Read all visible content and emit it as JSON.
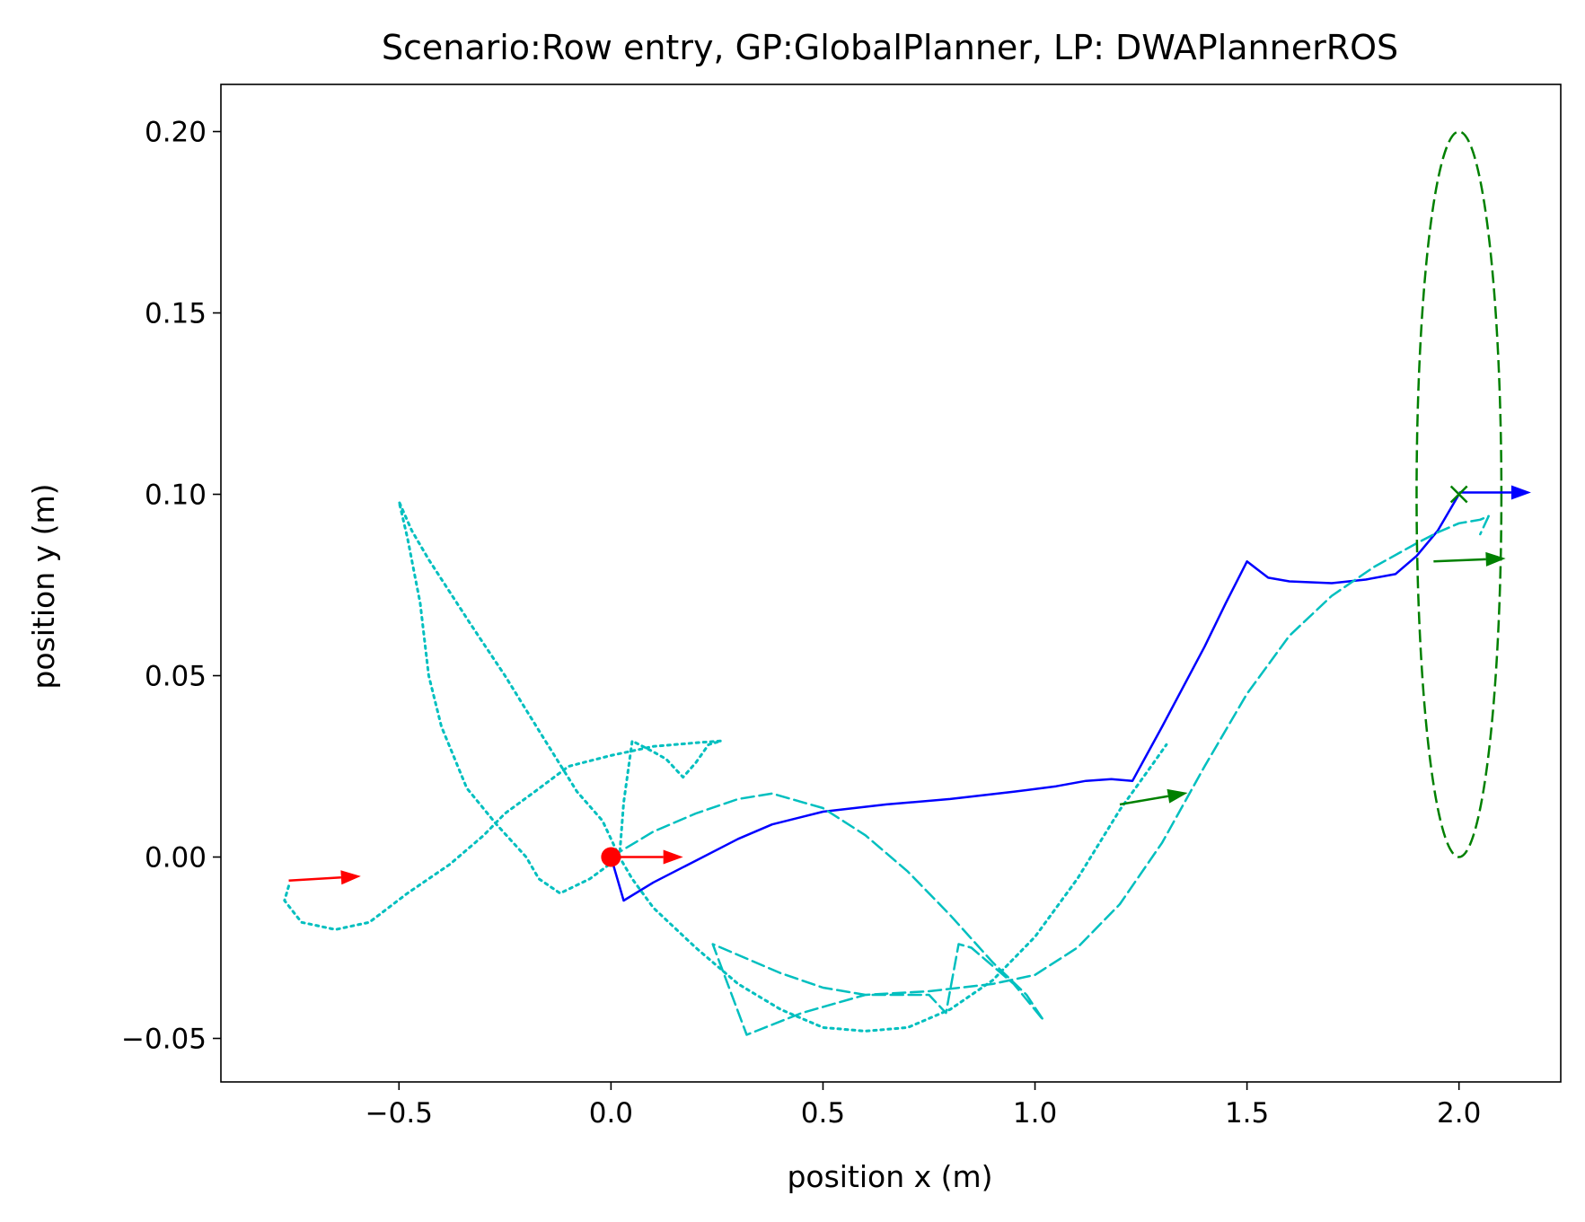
{
  "chart_data": {
    "type": "line",
    "title": "Scenario:Row entry, GP:GlobalPlanner, LP: DWAPlannerROS",
    "xlabel": "position x (m)",
    "ylabel": "position y (m)",
    "xlim": [
      -0.92,
      2.24
    ],
    "ylim": [
      -0.062,
      0.213
    ],
    "xticks": [
      -0.5,
      0.0,
      0.5,
      1.0,
      1.5,
      2.0
    ],
    "xtick_labels": [
      "−0.5",
      "0.0",
      "0.5",
      "1.0",
      "1.5",
      "2.0"
    ],
    "yticks": [
      -0.05,
      0.0,
      0.05,
      0.1,
      0.15,
      0.2
    ],
    "ytick_labels": [
      "−0.05",
      "0.00",
      "0.05",
      "0.10",
      "0.15",
      "0.20"
    ],
    "grid": false,
    "legend": "none",
    "series": [
      {
        "style": "solid",
        "color": "#0000ff",
        "points": [
          [
            0.0,
            0.0
          ],
          [
            0.03,
            -0.012
          ],
          [
            0.1,
            -0.007
          ],
          [
            0.2,
            -0.001
          ],
          [
            0.3,
            0.005
          ],
          [
            0.38,
            0.009
          ],
          [
            0.5,
            0.0125
          ],
          [
            0.65,
            0.0145
          ],
          [
            0.8,
            0.016
          ],
          [
            0.95,
            0.018
          ],
          [
            1.05,
            0.0195
          ],
          [
            1.12,
            0.021
          ],
          [
            1.18,
            0.0215
          ],
          [
            1.23,
            0.021
          ],
          [
            1.3,
            0.036
          ],
          [
            1.4,
            0.058
          ],
          [
            1.45,
            0.07
          ],
          [
            1.5,
            0.0815
          ],
          [
            1.55,
            0.077
          ],
          [
            1.6,
            0.076
          ],
          [
            1.7,
            0.0755
          ],
          [
            1.78,
            0.0765
          ],
          [
            1.85,
            0.078
          ],
          [
            1.9,
            0.083
          ],
          [
            1.95,
            0.09
          ],
          [
            1.98,
            0.096
          ],
          [
            2.0,
            0.1
          ]
        ]
      },
      {
        "style": "dashed",
        "color": "#00bfbf",
        "points": [
          [
            0.0,
            0.0
          ],
          [
            0.1,
            0.007
          ],
          [
            0.2,
            0.012
          ],
          [
            0.3,
            0.016
          ],
          [
            0.38,
            0.0175
          ],
          [
            0.5,
            0.0135
          ],
          [
            0.6,
            0.006
          ],
          [
            0.7,
            -0.004
          ],
          [
            0.8,
            -0.016
          ],
          [
            0.9,
            -0.029
          ],
          [
            0.98,
            -0.038
          ],
          [
            1.02,
            -0.045
          ],
          [
            0.95,
            -0.035
          ],
          [
            0.85,
            -0.025
          ],
          [
            0.82,
            -0.024
          ],
          [
            0.79,
            -0.043
          ],
          [
            0.75,
            -0.038
          ],
          [
            0.6,
            -0.038
          ],
          [
            0.5,
            -0.036
          ],
          [
            0.4,
            -0.032
          ],
          [
            0.24,
            -0.024
          ],
          [
            0.32,
            -0.049
          ],
          [
            0.45,
            -0.043
          ],
          [
            0.6,
            -0.038
          ],
          [
            0.75,
            -0.037
          ],
          [
            0.9,
            -0.035
          ],
          [
            1.0,
            -0.0325
          ],
          [
            1.1,
            -0.025
          ],
          [
            1.2,
            -0.013
          ],
          [
            1.3,
            0.004
          ],
          [
            1.4,
            0.025
          ],
          [
            1.5,
            0.045
          ],
          [
            1.6,
            0.061
          ],
          [
            1.7,
            0.072
          ],
          [
            1.8,
            0.08
          ],
          [
            1.9,
            0.0865
          ],
          [
            1.95,
            0.0895
          ],
          [
            2.0,
            0.092
          ],
          [
            2.05,
            0.093
          ],
          [
            2.07,
            0.094
          ],
          [
            2.05,
            0.089
          ]
        ]
      },
      {
        "style": "dotted",
        "color": "#00bfbf",
        "points": [
          [
            -0.76,
            -0.008
          ],
          [
            -0.77,
            -0.012
          ],
          [
            -0.73,
            -0.018
          ],
          [
            -0.65,
            -0.02
          ],
          [
            -0.57,
            -0.018
          ],
          [
            -0.48,
            -0.01
          ],
          [
            -0.38,
            -0.002
          ],
          [
            -0.3,
            0.006
          ],
          [
            -0.25,
            0.012
          ],
          [
            -0.18,
            0.018
          ],
          [
            -0.1,
            0.025
          ],
          [
            0.0,
            0.028
          ],
          [
            0.1,
            0.0305
          ],
          [
            0.2,
            0.0315
          ],
          [
            0.26,
            0.032
          ],
          [
            0.23,
            0.031
          ],
          [
            0.2,
            0.026
          ],
          [
            0.17,
            0.022
          ],
          [
            0.13,
            0.027
          ],
          [
            0.1,
            0.029
          ],
          [
            0.05,
            0.032
          ],
          [
            0.03,
            0.015
          ],
          [
            0.02,
            0.0
          ],
          [
            -0.02,
            0.01
          ],
          [
            -0.08,
            0.018
          ],
          [
            -0.16,
            0.033
          ],
          [
            -0.25,
            0.05
          ],
          [
            -0.33,
            0.064
          ],
          [
            -0.43,
            0.082
          ],
          [
            -0.47,
            0.09
          ],
          [
            -0.5,
            0.098
          ],
          [
            -0.48,
            0.088
          ],
          [
            -0.45,
            0.07
          ],
          [
            -0.43,
            0.05
          ],
          [
            -0.4,
            0.036
          ],
          [
            -0.34,
            0.019
          ],
          [
            -0.27,
            0.009
          ],
          [
            -0.2,
            0.0
          ],
          [
            -0.17,
            -0.006
          ],
          [
            -0.12,
            -0.01
          ],
          [
            -0.05,
            -0.006
          ],
          [
            0.02,
            0.0
          ],
          [
            0.05,
            -0.006
          ],
          [
            0.1,
            -0.014
          ],
          [
            0.2,
            -0.025
          ],
          [
            0.3,
            -0.035
          ],
          [
            0.4,
            -0.042
          ],
          [
            0.5,
            -0.047
          ],
          [
            0.6,
            -0.048
          ],
          [
            0.7,
            -0.047
          ],
          [
            0.8,
            -0.042
          ],
          [
            0.9,
            -0.034
          ],
          [
            1.0,
            -0.022
          ],
          [
            1.1,
            -0.006
          ],
          [
            1.2,
            0.013
          ],
          [
            1.28,
            0.026
          ],
          [
            1.31,
            0.031
          ]
        ]
      },
      {
        "style": "dashed",
        "color": "#008000",
        "kind": "ellipse",
        "center": [
          2.0,
          0.1
        ],
        "radius_x": 0.1,
        "radius_y": 0.1
      }
    ],
    "markers": [
      {
        "type": "circle",
        "color": "#ff0000",
        "x": 0.0,
        "y": 0.0
      },
      {
        "type": "x",
        "color": "#008000",
        "x": 2.0,
        "y": 0.1
      }
    ],
    "arrows": [
      {
        "color": "#ff0000",
        "x": -0.76,
        "y": -0.0065,
        "dx": 0.17,
        "dy": 0.0012
      },
      {
        "color": "#ff0000",
        "x": 0.0,
        "y": 0.0,
        "dx": 0.17,
        "dy": 0.0
      },
      {
        "color": "#008000",
        "x": 1.2,
        "y": 0.0145,
        "dx": 0.16,
        "dy": 0.0032
      },
      {
        "color": "#008000",
        "x": 1.94,
        "y": 0.0815,
        "dx": 0.17,
        "dy": 0.0008
      },
      {
        "color": "#0000ff",
        "x": 2.0,
        "y": 0.1005,
        "dx": 0.17,
        "dy": 0.0
      }
    ]
  }
}
